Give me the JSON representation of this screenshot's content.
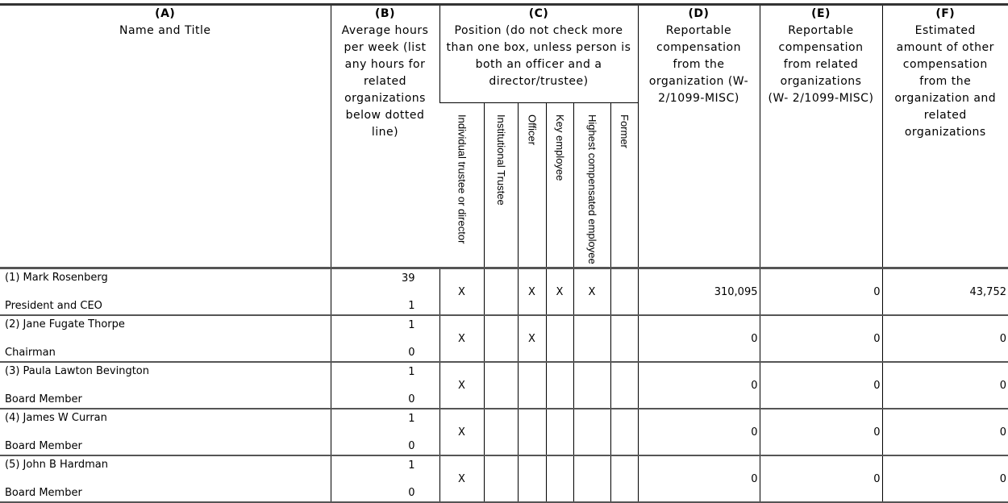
{
  "headers": {
    "a": {
      "letter": "(A)",
      "label": "Name and Title"
    },
    "b": {
      "letter": "(B)",
      "label": "Average hours per week (list any hours for related organizations below dotted line)"
    },
    "c": {
      "letter": "(C)",
      "label": "Position (do not check more than one box, unless person is both an officer and a director/trustee)",
      "subcolumns": [
        "Individual trustee or director",
        "Institutional Trustee",
        "Officer",
        "Key employee",
        "Highest compensated employee",
        "Former"
      ]
    },
    "d": {
      "letter": "(D)",
      "label": "Reportable compensation from the organization (W- 2/1099-MISC)"
    },
    "e": {
      "letter": "(E)",
      "label": "Reportable compensation from related organizations (W- 2/1099-MISC)"
    },
    "f": {
      "letter": "(F)",
      "label": "Estimated amount of other compensation from the organization and related organizations"
    }
  },
  "rows": [
    {
      "name": "(1) Mark Rosenberg",
      "title": "President and CEO",
      "hours": "39",
      "hours_related": "1",
      "checks": [
        "X",
        "",
        "X",
        "X",
        "X",
        ""
      ],
      "d": "310,095",
      "e": "0",
      "f": "43,752"
    },
    {
      "name": "(2) Jane Fugate Thorpe",
      "title": "Chairman",
      "hours": "1",
      "hours_related": "0",
      "checks": [
        "X",
        "",
        "X",
        "",
        "",
        ""
      ],
      "d": "0",
      "e": "0",
      "f": "0"
    },
    {
      "name": "(3) Paula Lawton Bevington",
      "title": "Board Member",
      "hours": "1",
      "hours_related": "0",
      "checks": [
        "X",
        "",
        "",
        "",
        "",
        ""
      ],
      "d": "0",
      "e": "0",
      "f": "0"
    },
    {
      "name": "(4) James W Curran",
      "title": "Board Member",
      "hours": "1",
      "hours_related": "0",
      "checks": [
        "X",
        "",
        "",
        "",
        "",
        ""
      ],
      "d": "0",
      "e": "0",
      "f": "0"
    },
    {
      "name": "(5) John B Hardman",
      "title": "Board Member",
      "hours": "1",
      "hours_related": "0",
      "checks": [
        "X",
        "",
        "",
        "",
        "",
        ""
      ],
      "d": "0",
      "e": "0",
      "f": "0"
    }
  ]
}
